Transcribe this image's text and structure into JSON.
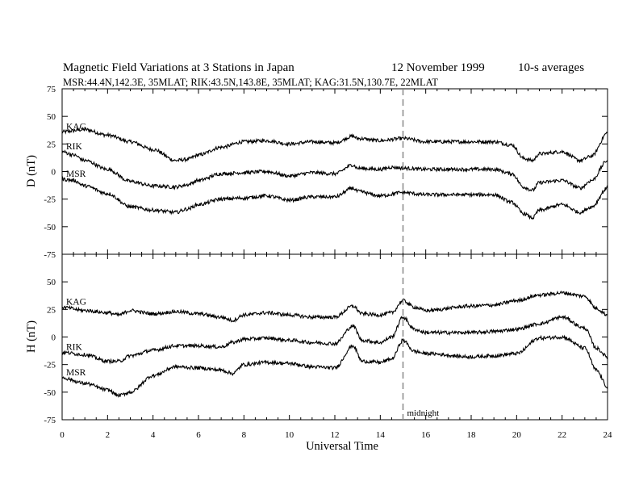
{
  "chart_data": {
    "type": "line",
    "title_parts": {
      "main": "Magnetic Field Variations at 3 Stations in Japan",
      "date": "12 November 1999",
      "averaging": "10-s averages"
    },
    "subtitle": "MSR:44.4N,142.3E, 35MLAT;  RIK:43.5N,143.8E, 35MLAT;  KAG:31.5N,130.7E, 22MLAT",
    "xlabel": "Universal Time",
    "xlim": [
      0,
      24
    ],
    "xticks": [
      "0",
      "2",
      "4",
      "6",
      "8",
      "10",
      "12",
      "14",
      "16",
      "18",
      "20",
      "22",
      "24"
    ],
    "annotation": {
      "label": "midnight",
      "x": 15
    },
    "panels": [
      {
        "ylabel": "D (nT)",
        "ylim": [
          -75,
          75
        ],
        "yticks": [
          "75",
          "50",
          "25",
          "0",
          "-25",
          "-50",
          "-75"
        ],
        "series": [
          {
            "name": "KAG",
            "points": [
              [
                0,
                36
              ],
              [
                1,
                38
              ],
              [
                2,
                33
              ],
              [
                3,
                27
              ],
              [
                4,
                20
              ],
              [
                5,
                10
              ],
              [
                5.5,
                11
              ],
              [
                6,
                15
              ],
              [
                7,
                22
              ],
              [
                8,
                27
              ],
              [
                9,
                28
              ],
              [
                10,
                25
              ],
              [
                11,
                27
              ],
              [
                12,
                26
              ],
              [
                12.8,
                32
              ],
              [
                13,
                30
              ],
              [
                14,
                28
              ],
              [
                15,
                30
              ],
              [
                16,
                27
              ],
              [
                18,
                27
              ],
              [
                19,
                27
              ],
              [
                19.8,
                24
              ],
              [
                20.3,
                12
              ],
              [
                20.7,
                10
              ],
              [
                21,
                16
              ],
              [
                22,
                18
              ],
              [
                22.8,
                10
              ],
              [
                23.3,
                14
              ],
              [
                24,
                35
              ]
            ]
          },
          {
            "name": "RIK",
            "points": [
              [
                0,
                18
              ],
              [
                0.5,
                15
              ],
              [
                1,
                10
              ],
              [
                2,
                2
              ],
              [
                3,
                -9
              ],
              [
                4,
                -13
              ],
              [
                5,
                -14
              ],
              [
                5.5,
                -12
              ],
              [
                6,
                -8
              ],
              [
                7,
                -2
              ],
              [
                8,
                -1
              ],
              [
                9,
                0
              ],
              [
                10,
                -4
              ],
              [
                11,
                -1
              ],
              [
                12,
                -2
              ],
              [
                12.8,
                6
              ],
              [
                13,
                3
              ],
              [
                14,
                2
              ],
              [
                14.5,
                4
              ],
              [
                15,
                3
              ],
              [
                16,
                2
              ],
              [
                18,
                2
              ],
              [
                19,
                2
              ],
              [
                19.8,
                -2
              ],
              [
                20.3,
                -14
              ],
              [
                20.7,
                -17
              ],
              [
                21,
                -10
              ],
              [
                22,
                -8
              ],
              [
                22.8,
                -15
              ],
              [
                23.3,
                -8
              ],
              [
                24,
                10
              ]
            ]
          },
          {
            "name": "MSR",
            "points": [
              [
                0,
                -7
              ],
              [
                0.5,
                -8
              ],
              [
                1,
                -13
              ],
              [
                2,
                -20
              ],
              [
                3,
                -32
              ],
              [
                4,
                -35
              ],
              [
                5,
                -37
              ],
              [
                5.5,
                -34
              ],
              [
                6,
                -30
              ],
              [
                7,
                -25
              ],
              [
                8,
                -24
              ],
              [
                9,
                -22
              ],
              [
                10,
                -26
              ],
              [
                11,
                -23
              ],
              [
                12,
                -23
              ],
              [
                12.8,
                -15
              ],
              [
                13,
                -18
              ],
              [
                14,
                -22
              ],
              [
                15,
                -19
              ],
              [
                16,
                -21
              ],
              [
                18,
                -21
              ],
              [
                19,
                -21
              ],
              [
                19.8,
                -28
              ],
              [
                20.3,
                -38
              ],
              [
                20.7,
                -42
              ],
              [
                21,
                -35
              ],
              [
                22,
                -30
              ],
              [
                22.8,
                -37
              ],
              [
                23.3,
                -32
              ],
              [
                24,
                -15
              ]
            ]
          }
        ]
      },
      {
        "ylabel": "H (nT)",
        "ylim": [
          -75,
          75
        ],
        "yticks": [
          "",
          "50",
          "25",
          "0",
          "-25",
          "-50",
          "-75"
        ],
        "series": [
          {
            "name": "KAG",
            "points": [
              [
                0,
                27
              ],
              [
                1,
                24
              ],
              [
                2,
                22
              ],
              [
                2.5,
                20
              ],
              [
                3,
                24
              ],
              [
                4,
                21
              ],
              [
                5,
                23
              ],
              [
                6,
                21
              ],
              [
                7,
                18
              ],
              [
                7.5,
                15
              ],
              [
                8,
                20
              ],
              [
                9,
                22
              ],
              [
                10,
                20
              ],
              [
                11,
                18
              ],
              [
                12,
                18
              ],
              [
                12.8,
                28
              ],
              [
                13.2,
                21
              ],
              [
                14,
                20
              ],
              [
                14.5,
                22
              ],
              [
                15,
                33
              ],
              [
                15.5,
                27
              ],
              [
                16,
                24
              ],
              [
                18,
                28
              ],
              [
                19,
                29
              ],
              [
                20,
                33
              ],
              [
                21,
                38
              ],
              [
                22,
                40
              ],
              [
                23,
                37
              ],
              [
                23.5,
                26
              ],
              [
                24,
                20
              ]
            ]
          },
          {
            "name": "RIK",
            "points": [
              [
                0,
                -14
              ],
              [
                1,
                -16
              ],
              [
                2,
                -22
              ],
              [
                2.5,
                -22
              ],
              [
                3,
                -17
              ],
              [
                4,
                -12
              ],
              [
                5,
                -8
              ],
              [
                6,
                -8
              ],
              [
                7,
                -9
              ],
              [
                7.5,
                -5
              ],
              [
                8,
                -2
              ],
              [
                9,
                -1
              ],
              [
                10,
                -3
              ],
              [
                11,
                -5
              ],
              [
                12,
                -6
              ],
              [
                12.8,
                10
              ],
              [
                13.2,
                -3
              ],
              [
                14,
                -5
              ],
              [
                14.5,
                0
              ],
              [
                15,
                18
              ],
              [
                15.5,
                7
              ],
              [
                16,
                4
              ],
              [
                18,
                4
              ],
              [
                19,
                5
              ],
              [
                20,
                7
              ],
              [
                21,
                12
              ],
              [
                22,
                18
              ],
              [
                23,
                8
              ],
              [
                23.5,
                -10
              ],
              [
                24,
                -18
              ]
            ]
          },
          {
            "name": "MSR",
            "points": [
              [
                0,
                -37
              ],
              [
                1,
                -42
              ],
              [
                2,
                -48
              ],
              [
                2.5,
                -53
              ],
              [
                3,
                -50
              ],
              [
                4,
                -35
              ],
              [
                5,
                -27
              ],
              [
                6,
                -28
              ],
              [
                7,
                -30
              ],
              [
                7.5,
                -33
              ],
              [
                8,
                -25
              ],
              [
                9,
                -23
              ],
              [
                10,
                -24
              ],
              [
                11,
                -27
              ],
              [
                12,
                -28
              ],
              [
                12.8,
                -8
              ],
              [
                13.2,
                -22
              ],
              [
                14,
                -23
              ],
              [
                14.5,
                -20
              ],
              [
                15,
                -3
              ],
              [
                15.5,
                -13
              ],
              [
                16,
                -15
              ],
              [
                18,
                -18
              ],
              [
                19,
                -17
              ],
              [
                20,
                -15
              ],
              [
                21,
                -1
              ],
              [
                22,
                0
              ],
              [
                23,
                -10
              ],
              [
                23.5,
                -30
              ],
              [
                24,
                -45
              ]
            ]
          }
        ]
      }
    ]
  }
}
